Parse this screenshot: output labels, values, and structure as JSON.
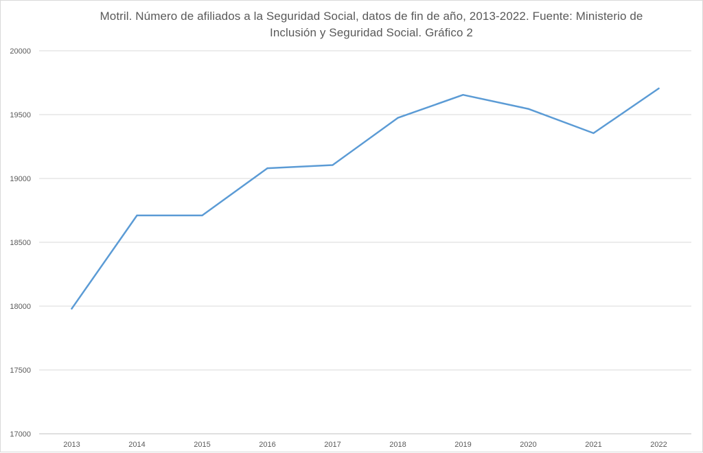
{
  "chart_data": {
    "type": "line",
    "title": "Motril. Número de afiliados a la Seguridad Social, datos de fin de año, 2013-2022. Fuente: Ministerio de Inclusión y Seguridad Social.    Gráfico 2",
    "categories": [
      "2013",
      "2014",
      "2015",
      "2016",
      "2017",
      "2018",
      "2019",
      "2020",
      "2021",
      "2022"
    ],
    "series": [
      {
        "values": [
          17980,
          18710,
          18710,
          19080,
          19105,
          19475,
          19655,
          19545,
          19355,
          19705
        ],
        "color": "#5b9bd5"
      }
    ],
    "xlabel": "",
    "ylabel": "",
    "ylim": [
      17000,
      20000
    ],
    "yticks": [
      17000,
      17500,
      18000,
      18500,
      19000,
      19500,
      20000
    ],
    "grid": true,
    "legend": "none"
  }
}
